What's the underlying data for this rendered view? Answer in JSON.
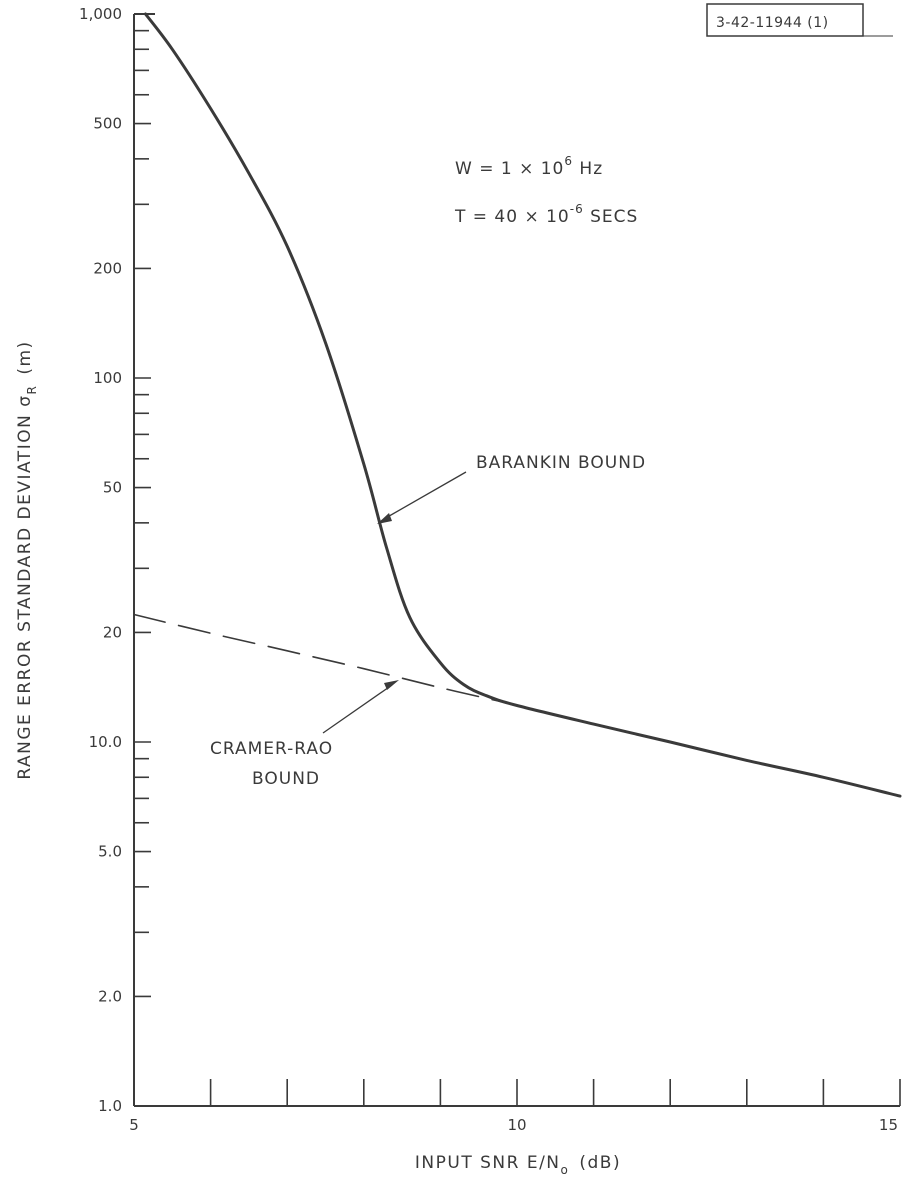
{
  "chart_data": {
    "type": "line",
    "xlabel": "INPUT SNR E/N",
    "xlabel_sub": "o",
    "xlabel_unit": "(dB)",
    "ylabel": "RANGE ERROR STANDARD DEVIATION σ",
    "ylabel_sub": "R",
    "ylabel_unit": "(m)",
    "xlim": [
      5,
      15
    ],
    "ylim": [
      1,
      1000
    ],
    "yscale": "log",
    "grid": false,
    "x_ticks": [
      5,
      6,
      7,
      8,
      9,
      10,
      11,
      12,
      13,
      14,
      15
    ],
    "x_tick_labels": [
      {
        "value": 5,
        "text": "5"
      },
      {
        "value": 10,
        "text": "10"
      },
      {
        "value": 15,
        "text": "15"
      }
    ],
    "y_ticks": [
      1,
      2,
      3,
      4,
      5,
      6,
      7,
      8,
      9,
      10,
      20,
      30,
      40,
      50,
      60,
      70,
      80,
      90,
      100,
      200,
      300,
      400,
      500,
      600,
      700,
      800,
      900,
      1000
    ],
    "y_tick_labels": [
      {
        "value": 1,
        "text": "1.0"
      },
      {
        "value": 2,
        "text": "2.0"
      },
      {
        "value": 5,
        "text": "5.0"
      },
      {
        "value": 10,
        "text": "10.0"
      },
      {
        "value": 20,
        "text": "20"
      },
      {
        "value": 50,
        "text": "50"
      },
      {
        "value": 100,
        "text": "100"
      },
      {
        "value": 200,
        "text": "200"
      },
      {
        "value": 500,
        "text": "500"
      },
      {
        "value": 1000,
        "text": "1,000"
      }
    ],
    "series": [
      {
        "name": "BARANKIN BOUND",
        "style": "solid",
        "x": [
          5.15,
          5.5,
          6.0,
          6.5,
          7.0,
          7.5,
          8.0,
          8.3,
          8.6,
          9.0,
          9.3,
          9.6,
          10.0,
          11.0,
          12.0,
          13.0,
          14.0,
          15.0
        ],
        "y": [
          1000,
          800,
          550,
          365,
          230,
          125,
          58,
          34,
          22,
          16.5,
          14.4,
          13.4,
          12.6,
          11.2,
          10.0,
          8.9,
          8.0,
          7.1
        ]
      },
      {
        "name": "CRAMER-RAO BOUND",
        "style": "dashed",
        "x": [
          5.0,
          6.0,
          7.0,
          8.0,
          9.0,
          9.8
        ],
        "y": [
          22.4,
          19.9,
          17.8,
          15.9,
          14.1,
          12.9
        ]
      }
    ],
    "annotations": {
      "params_line1": {
        "prefix": "W  =  1 × 10",
        "sup": "6",
        "suffix": " Hz"
      },
      "params_line2": {
        "prefix": "T  =  40 × 10",
        "sup": "-6",
        "suffix": " SECS"
      },
      "barankin_label": "BARANKIN BOUND",
      "cramer_label_line1": "CRAMER-RAO",
      "cramer_label_line2": "BOUND",
      "figure_id": "3-42-11944 (1)"
    }
  }
}
